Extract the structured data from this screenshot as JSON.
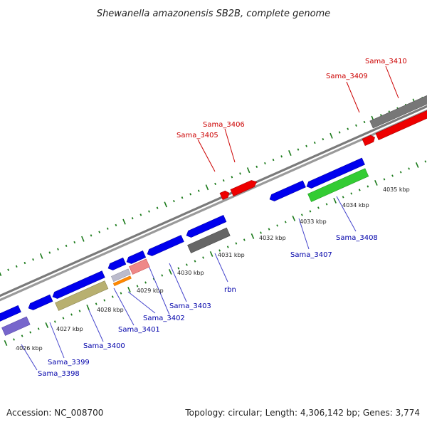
{
  "title": "Shewanella amazonensis SB2B, complete genome",
  "footer": {
    "accession": "Accession: NC_008700",
    "summary": "Topology: circular; Length: 4,306,142 bp; Genes: 3,774"
  },
  "colors": {
    "backbone": "#888888",
    "tick": "#1a7a1a",
    "blue_label": "#0000aa",
    "red_label": "#cc0000",
    "leader": "#5555cc",
    "leader_red": "#cc0000"
  },
  "scale_labels": [
    "4026 kbp",
    "4027 kbp",
    "4028 kbp",
    "4029 kbp",
    "4030 kbp",
    "4031 kbp",
    "4032 kbp",
    "4033 kbp",
    "4034 kbp",
    "4035 kbp"
  ],
  "gene_labels": [
    {
      "text": "Sama_3398",
      "color": "blue"
    },
    {
      "text": "Sama_3399",
      "color": "blue"
    },
    {
      "text": "Sama_3400",
      "color": "blue"
    },
    {
      "text": "Sama_3401",
      "color": "blue"
    },
    {
      "text": "Sama_3402",
      "color": "blue"
    },
    {
      "text": "Sama_3403",
      "color": "blue"
    },
    {
      "text": "rbn",
      "color": "blue"
    },
    {
      "text": "Sama_3407",
      "color": "blue"
    },
    {
      "text": "Sama_3408",
      "color": "blue"
    },
    {
      "text": "Sama_3405",
      "color": "red"
    },
    {
      "text": "Sama_3406",
      "color": "red"
    },
    {
      "text": "Sama_3409",
      "color": "red"
    },
    {
      "text": "Sama_3410",
      "color": "red"
    }
  ]
}
